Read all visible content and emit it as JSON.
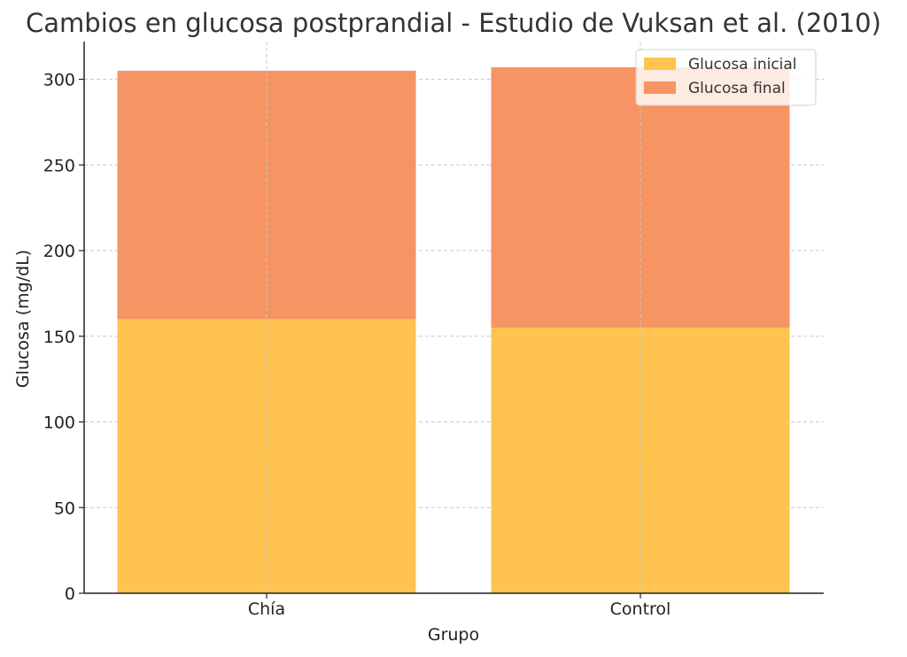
{
  "chart_data": {
    "type": "bar",
    "stacked": true,
    "title": "Cambios en glucosa postprandial - Estudio de Vuksan et al. (2010)",
    "xlabel": "Grupo",
    "ylabel": "Glucosa (mg/dL)",
    "categories": [
      "Chía",
      "Control"
    ],
    "series": [
      {
        "name": "Glucosa inicial",
        "values": [
          160,
          155
        ],
        "color": "#FEC44F"
      },
      {
        "name": "Glucosa final",
        "values": [
          145,
          152
        ],
        "color": "#F69463"
      }
    ],
    "ylim": [
      0,
      322
    ],
    "yticks": [
      0,
      50,
      100,
      150,
      200,
      250,
      300
    ],
    "grid": true,
    "legend": "top-right"
  }
}
